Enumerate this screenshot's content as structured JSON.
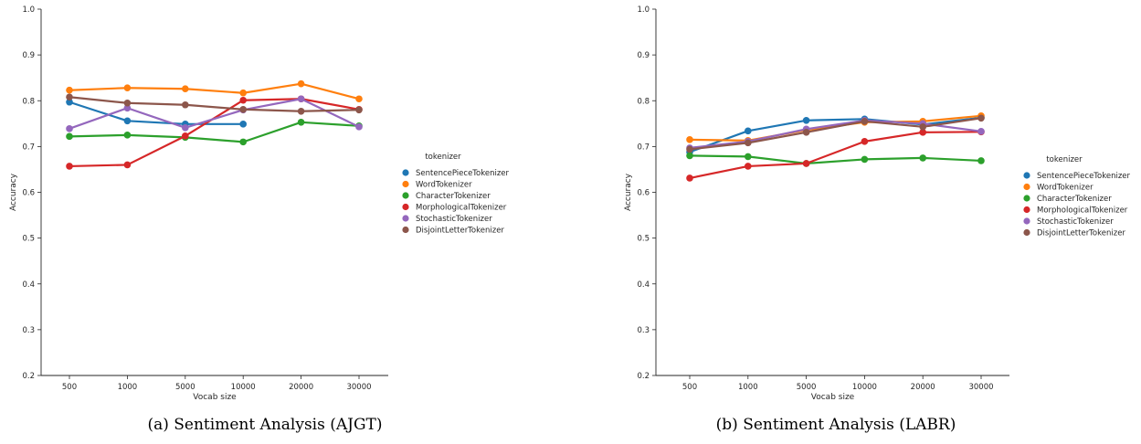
{
  "chart_data": [
    {
      "type": "line",
      "caption": "(a) Sentiment Analysis (AJGT)",
      "xlabel": "Vocab size",
      "ylabel": "Accuracy",
      "categories": [
        "500",
        "1000",
        "5000",
        "10000",
        "20000",
        "30000"
      ],
      "ylim": [
        0.2,
        1.0
      ],
      "yticks": [
        "0.2",
        "0.3",
        "0.4",
        "0.5",
        "0.6",
        "0.7",
        "0.8",
        "0.9",
        "1.0"
      ],
      "legend_title": "tokenizer",
      "legend_position": "right",
      "grid": false,
      "series": [
        {
          "name": "SentencePieceTokenizer",
          "color": "#1f77b4",
          "values": [
            0.797,
            0.756,
            0.749,
            0.749,
            null,
            null
          ]
        },
        {
          "name": "WordTokenizer",
          "color": "#ff7f0e",
          "values": [
            0.823,
            0.828,
            0.826,
            0.817,
            0.837,
            0.804
          ]
        },
        {
          "name": "CharacterTokenizer",
          "color": "#2ca02c",
          "values": [
            0.722,
            0.725,
            0.72,
            0.71,
            0.753,
            0.745
          ]
        },
        {
          "name": "MorphologicalTokenizer",
          "color": "#d62728",
          "values": [
            0.657,
            0.66,
            0.723,
            0.801,
            0.804,
            0.781
          ]
        },
        {
          "name": "StochasticTokenizer",
          "color": "#9467bd",
          "values": [
            0.739,
            0.784,
            0.741,
            0.78,
            0.804,
            0.743
          ]
        },
        {
          "name": "DisjointLetterTokenizer",
          "color": "#8c564b",
          "values": [
            0.808,
            0.795,
            0.791,
            0.781,
            0.777,
            0.78
          ]
        }
      ]
    },
    {
      "type": "line",
      "caption": "(b) Sentiment Analysis (LABR)",
      "xlabel": "Vocab size",
      "ylabel": "Accuracy",
      "categories": [
        "500",
        "1000",
        "5000",
        "10000",
        "20000",
        "30000"
      ],
      "ylim": [
        0.2,
        1.0
      ],
      "yticks": [
        "0.2",
        "0.3",
        "0.4",
        "0.5",
        "0.6",
        "0.7",
        "0.8",
        "0.9",
        "1.0"
      ],
      "legend_title": "tokenizer",
      "legend_position": "right",
      "grid": false,
      "series": [
        {
          "name": "SentencePieceTokenizer",
          "color": "#1f77b4",
          "values": [
            0.688,
            0.734,
            0.757,
            0.76,
            0.748,
            0.763
          ]
        },
        {
          "name": "WordTokenizer",
          "color": "#ff7f0e",
          "values": [
            0.715,
            0.713,
            0.736,
            0.753,
            0.755,
            0.767
          ]
        },
        {
          "name": "CharacterTokenizer",
          "color": "#2ca02c",
          "values": [
            0.68,
            0.678,
            0.663,
            0.672,
            0.675,
            0.669
          ]
        },
        {
          "name": "MorphologicalTokenizer",
          "color": "#d62728",
          "values": [
            0.631,
            0.657,
            0.663,
            0.711,
            0.731,
            0.732
          ]
        },
        {
          "name": "StochasticTokenizer",
          "color": "#9467bd",
          "values": [
            0.697,
            0.711,
            0.738,
            0.757,
            0.75,
            0.733
          ]
        },
        {
          "name": "DisjointLetterTokenizer",
          "color": "#8c564b",
          "values": [
            0.694,
            0.708,
            0.731,
            0.755,
            0.743,
            0.762
          ]
        }
      ]
    }
  ]
}
